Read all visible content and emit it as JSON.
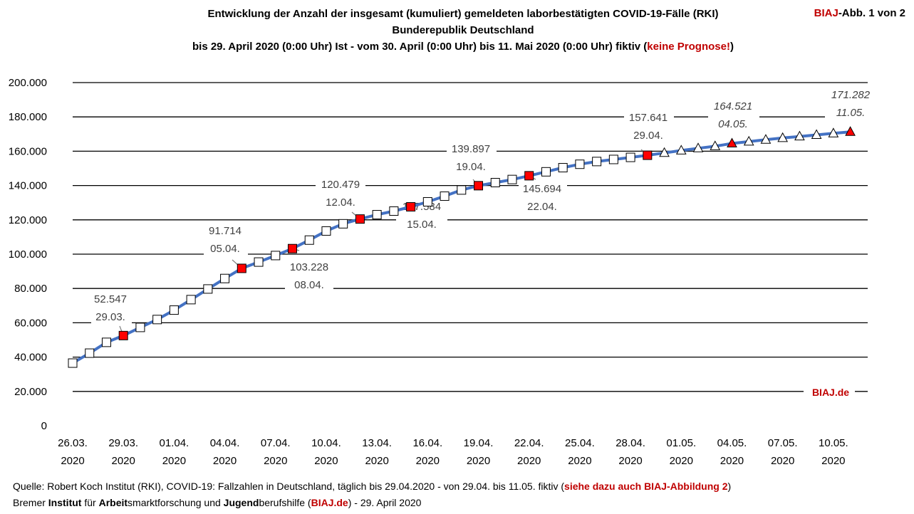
{
  "header": {
    "title_line1": "Entwicklung der Anzahl der insgesamt (kumuliert) gemeldeten laborbestätigten COVID-19-Fälle (RKI)",
    "title_line2": "Bunderepublik Deutschland",
    "title_line3_a": "bis 29. April 2020 (0:00 Uhr) Ist - vom 30. April (0:00 Uhr) bis 11. Mai 2020 (0:00 Uhr) fiktiv (",
    "title_line3_red": "keine Prognose!",
    "title_line3_c": ")",
    "abb_red": "BIAJ",
    "abb_rest": "-Abb. 1 von 2"
  },
  "footer": {
    "line1_a": "Quelle: Robert Koch Institut (RKI), COVID-19: Fallzahlen in Deutschland, täglich bis 29.04.2020 - von 29.04. bis 11.05. fiktiv (",
    "line1_red": "siehe dazu auch BIAJ-Abbildung 2",
    "line1_c": ")",
    "line2_a": "Bremer ",
    "line2_b1": "Institut",
    "line2_c": " für ",
    "line2_b2": "Arbeit",
    "line2_d": "smarktforschung und ",
    "line2_b3": "Jugend",
    "line2_e": "berufshilfe (",
    "line2_red": "BIAJ.de",
    "line2_f": ") - 29. April 2020"
  },
  "colors": {
    "line": "#4472c4",
    "highlight": "#ff0000",
    "brand_red": "#c00000",
    "grid": "#000000"
  },
  "chart_data": {
    "type": "line",
    "ylim": [
      0,
      200000
    ],
    "y_ticks": [
      "0",
      "20.000",
      "40.000",
      "60.000",
      "80.000",
      "100.000",
      "120.000",
      "140.000",
      "160.000",
      "180.000",
      "200.000"
    ],
    "x_ticks": [
      {
        "day": "26.03.",
        "year": "2020"
      },
      {
        "day": "29.03.",
        "year": "2020"
      },
      {
        "day": "01.04.",
        "year": "2020"
      },
      {
        "day": "04.04.",
        "year": "2020"
      },
      {
        "day": "07.04.",
        "year": "2020"
      },
      {
        "day": "10.04.",
        "year": "2020"
      },
      {
        "day": "13.04.",
        "year": "2020"
      },
      {
        "day": "16.04.",
        "year": "2020"
      },
      {
        "day": "19.04.",
        "year": "2020"
      },
      {
        "day": "22.04.",
        "year": "2020"
      },
      {
        "day": "25.04.",
        "year": "2020"
      },
      {
        "day": "28.04.",
        "year": "2020"
      },
      {
        "day": "01.05.",
        "year": "2020"
      },
      {
        "day": "04.05.",
        "year": "2020"
      },
      {
        "day": "07.05.",
        "year": "2020"
      },
      {
        "day": "10.05.",
        "year": "2020"
      }
    ],
    "x": [
      "2020-03-26",
      "2020-03-27",
      "2020-03-28",
      "2020-03-29",
      "2020-03-30",
      "2020-03-31",
      "2020-04-01",
      "2020-04-02",
      "2020-04-03",
      "2020-04-04",
      "2020-04-05",
      "2020-04-06",
      "2020-04-07",
      "2020-04-08",
      "2020-04-09",
      "2020-04-10",
      "2020-04-11",
      "2020-04-12",
      "2020-04-13",
      "2020-04-14",
      "2020-04-15",
      "2020-04-16",
      "2020-04-17",
      "2020-04-18",
      "2020-04-19",
      "2020-04-20",
      "2020-04-21",
      "2020-04-22",
      "2020-04-23",
      "2020-04-24",
      "2020-04-25",
      "2020-04-26",
      "2020-04-27",
      "2020-04-28",
      "2020-04-29",
      "2020-04-30",
      "2020-05-01",
      "2020-05-02",
      "2020-05-03",
      "2020-05-04",
      "2020-05-05",
      "2020-05-06",
      "2020-05-07",
      "2020-05-08",
      "2020-05-09",
      "2020-05-10",
      "2020-05-11"
    ],
    "series": [
      {
        "values": [
          36500,
          42300,
          48600,
          52547,
          57300,
          61900,
          67400,
          73500,
          79700,
          85800,
          91714,
          95400,
          99200,
          103228,
          108200,
          113500,
          117700,
          120479,
          123000,
          125100,
          127584,
          130500,
          133800,
          137400,
          139897,
          141700,
          143500,
          145694,
          148000,
          150400,
          152400,
          154000,
          155200,
          156400,
          157641,
          159000,
          160400,
          161700,
          162900,
          164521,
          165600,
          166700,
          167700,
          168600,
          169500,
          170400,
          171282
        ],
        "marker": [
          "square",
          "square",
          "square",
          "square",
          "square",
          "square",
          "square",
          "square",
          "square",
          "square",
          "square",
          "square",
          "square",
          "square",
          "square",
          "square",
          "square",
          "square",
          "square",
          "square",
          "square",
          "square",
          "square",
          "square",
          "square",
          "square",
          "square",
          "square",
          "square",
          "square",
          "square",
          "square",
          "square",
          "square",
          "square",
          "triangle",
          "triangle",
          "triangle",
          "triangle",
          "triangle",
          "triangle",
          "triangle",
          "triangle",
          "triangle",
          "triangle",
          "triangle",
          "triangle"
        ],
        "highlighted": [
          "2020-03-29",
          "2020-04-05",
          "2020-04-08",
          "2020-04-12",
          "2020-04-15",
          "2020-04-19",
          "2020-04-22",
          "2020-04-29",
          "2020-05-04",
          "2020-05-11"
        ]
      }
    ],
    "annotations": [
      {
        "x": "2020-03-29",
        "value": "52.547",
        "date": "29.03.",
        "italic": false
      },
      {
        "x": "2020-04-05",
        "value": "91.714",
        "date": "05.04.",
        "italic": false
      },
      {
        "x": "2020-04-08",
        "value": "103.228",
        "date": "08.04.",
        "italic": false
      },
      {
        "x": "2020-04-12",
        "value": "120.479",
        "date": "12.04.",
        "italic": false
      },
      {
        "x": "2020-04-15",
        "value": "127.584",
        "date": "15.04.",
        "italic": false
      },
      {
        "x": "2020-04-19",
        "value": "139.897",
        "date": "19.04.",
        "italic": false
      },
      {
        "x": "2020-04-22",
        "value": "145.694",
        "date": "22.04.",
        "italic": false
      },
      {
        "x": "2020-04-29",
        "value": "157.641",
        "date": "29.04.",
        "italic": false
      },
      {
        "x": "2020-05-04",
        "value": "164.521",
        "date": "04.05.",
        "italic": true
      },
      {
        "x": "2020-05-11",
        "value": "171.282",
        "date": "11.05.",
        "italic": true
      }
    ],
    "watermark": "BIAJ.de",
    "grid": true
  }
}
